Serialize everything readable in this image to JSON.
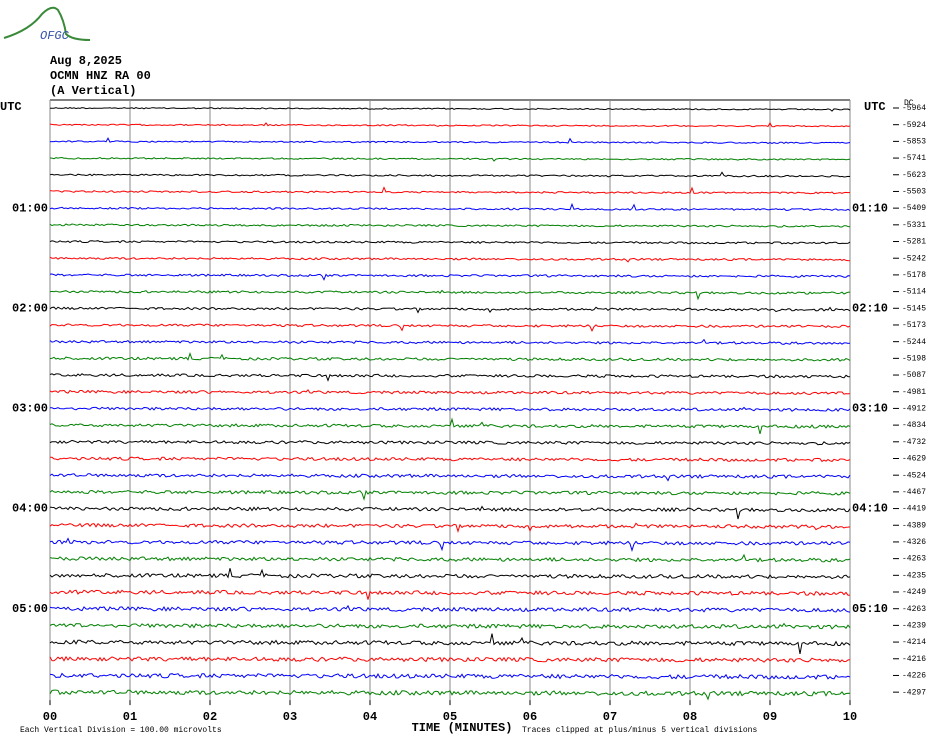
{
  "logo": "OFGC",
  "header": {
    "date": "Aug 8,2025",
    "station": "OCMN HNZ RA 00",
    "component": "(A Vertical)"
  },
  "left_axis": {
    "title": "UTC",
    "labels": [
      "01:00",
      "02:00",
      "03:00",
      "04:00",
      "05:00"
    ]
  },
  "right_axis": {
    "title": "UTC",
    "labels": [
      "01:10",
      "02:10",
      "03:10",
      "04:10",
      "05:10"
    ],
    "dc_title": "DC",
    "dc_offsets": [
      -5964,
      -5924,
      -5853,
      -5741,
      -5623,
      -5503,
      -5409,
      -5331,
      -5281,
      -5242,
      -5178,
      -5114,
      -5145,
      -5173,
      -5244,
      -5198,
      -5087,
      -4981,
      -4912,
      -4834,
      -4732,
      -4629,
      -4524,
      -4467,
      -4419,
      -4389,
      -4326,
      -4263,
      -4235,
      -4249,
      -4263,
      -4239,
      -4214,
      -4216,
      -4226,
      -4297
    ]
  },
  "x_axis": {
    "ticks": [
      "00",
      "01",
      "02",
      "03",
      "04",
      "05",
      "06",
      "07",
      "08",
      "09",
      "10"
    ],
    "title": "TIME (MINUTES)"
  },
  "footer": {
    "scale_note": "Each Vertical Division =  100.00 microvolts",
    "clip_note": "Traces clipped at plus/minus 5 vertical divisions"
  },
  "trace_colors": [
    "#000000",
    "#ff0000",
    "#0000ff",
    "#008000"
  ]
}
